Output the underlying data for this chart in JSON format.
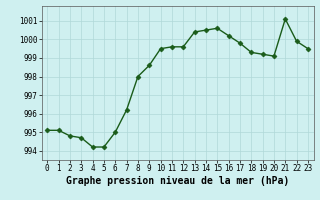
{
  "x": [
    0,
    1,
    2,
    3,
    4,
    5,
    6,
    7,
    8,
    9,
    10,
    11,
    12,
    13,
    14,
    15,
    16,
    17,
    18,
    19,
    20,
    21,
    22,
    23
  ],
  "y": [
    995.1,
    995.1,
    994.8,
    994.7,
    994.2,
    994.2,
    995.0,
    996.2,
    998.0,
    998.6,
    999.5,
    999.6,
    999.6,
    1000.4,
    1000.5,
    1000.6,
    1000.2,
    999.8,
    999.3,
    999.2,
    999.1,
    1001.1,
    999.9,
    999.5
  ],
  "line_color": "#1a5c1a",
  "marker": "D",
  "marker_size": 2.5,
  "bg_color": "#cff0f0",
  "grid_color": "#b0d8d8",
  "title": "Graphe pression niveau de la mer (hPa)",
  "title_fontsize": 7,
  "ylim": [
    993.5,
    1001.8
  ],
  "yticks": [
    994,
    995,
    996,
    997,
    998,
    999,
    1000,
    1001
  ],
  "xticks": [
    0,
    1,
    2,
    3,
    4,
    5,
    6,
    7,
    8,
    9,
    10,
    11,
    12,
    13,
    14,
    15,
    16,
    17,
    18,
    19,
    20,
    21,
    22,
    23
  ],
  "tick_fontsize": 5.5,
  "line_width": 1.0
}
